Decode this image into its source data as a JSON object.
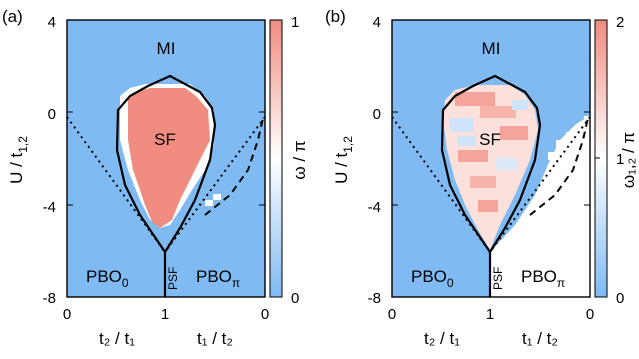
{
  "colors": {
    "mi_blue": "#7fbaf3",
    "sf_red": "#f08c80",
    "cbar_low": "#7fbaf3",
    "cbar_mid": "#ffffff",
    "cbar_high": "#f08c80"
  },
  "panels": [
    {
      "tag": "(a)",
      "ylabel_main": "U / t",
      "ylabel_sub": "1,2",
      "yticks": [
        "4",
        "0",
        "-4",
        "-8"
      ],
      "xticks": [
        "0",
        "1",
        "0"
      ],
      "xlabel_left": "t₂ / t₁",
      "xlabel_right": "t₁ / t₂",
      "regions": {
        "mi": "MI",
        "sf": "SF",
        "pbo0_main": "PBO",
        "pbo0_sub": "0",
        "psf": "PSF",
        "pbopi_main": "PBO",
        "pbopi_sub": "π"
      },
      "cbar_label": "ω / π",
      "cbar_ticks": [
        "1",
        "0"
      ]
    },
    {
      "tag": "(b)",
      "ylabel_main": "U / t",
      "ylabel_sub": "1,2",
      "yticks": [
        "4",
        "0",
        "-4",
        "-8"
      ],
      "xticks": [
        "0",
        "1",
        "0"
      ],
      "xlabel_left": "t₂ / t₁",
      "xlabel_right": "t₁ / t₂",
      "regions": {
        "mi": "MI",
        "sf": "SF",
        "pbo0_main": "PBO",
        "pbo0_sub": "0",
        "psf": "PSF",
        "pbopi_main": "PBO",
        "pbopi_sub": "π"
      },
      "cbar_label": "ω₁,₂ / π",
      "cbar_ticks": [
        "2",
        "1",
        "0"
      ]
    }
  ],
  "chart_data": [
    {
      "type": "heatmap",
      "title": "(a)",
      "xlabel": "t₂ / t₁  |  t₁ / t₂",
      "ylabel": "U / t1,2",
      "x_ticks": [
        "0",
        "1",
        "0"
      ],
      "ylim": [
        -8,
        4
      ],
      "colorbar": {
        "label": "ω / π",
        "range": [
          0,
          1
        ]
      },
      "regions": [
        "MI",
        "SF",
        "PBO0",
        "PSF",
        "PBOπ"
      ],
      "boundary_sf": {
        "x": [
          1.0,
          0.55,
          0.5,
          0.5,
          0.55,
          0.7,
          1.0,
          0.7,
          0.45,
          0.3,
          0.35,
          0.5,
          0.5,
          0.55,
          1.0
        ],
        "y": [
          -6,
          -4,
          -2,
          0,
          1,
          1.5,
          1.5,
          1.5,
          1,
          0,
          -2,
          -4,
          -4,
          -4,
          -6
        ]
      },
      "boundary_pbo0_dotted": {
        "x": [
          0,
          1
        ],
        "y": [
          0,
          -6
        ]
      },
      "boundary_pbopi_dotted": {
        "x": [
          1,
          0
        ],
        "y": [
          -6,
          0
        ]
      },
      "boundary_pbopi_dashed": {
        "x": [
          0.6,
          0
        ],
        "y": [
          -4.3,
          0.3
        ]
      }
    },
    {
      "type": "heatmap",
      "title": "(b)",
      "xlabel": "t₂ / t₁  |  t₁ / t₂",
      "ylabel": "U / t1,2",
      "x_ticks": [
        "0",
        "1",
        "0"
      ],
      "ylim": [
        -8,
        4
      ],
      "colorbar": {
        "label": "ω1,2 / π",
        "range": [
          0,
          2
        ]
      },
      "regions": [
        "MI",
        "SF",
        "PBO0",
        "PSF",
        "PBOπ"
      ]
    }
  ]
}
